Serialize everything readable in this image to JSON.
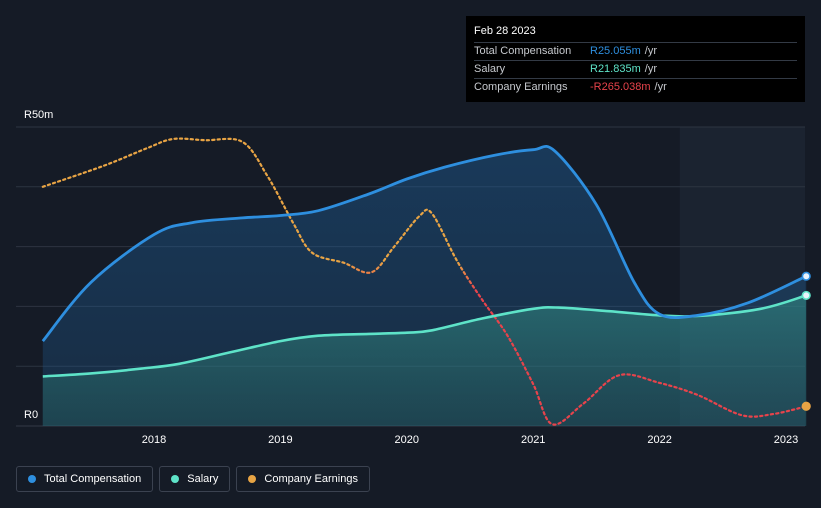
{
  "chart_data": {
    "type": "line",
    "x_ticks": [
      "2018",
      "2019",
      "2020",
      "2021",
      "2022",
      "2023"
    ],
    "y_tick_labels": {
      "max": "R50m",
      "min": "R0"
    },
    "ylim": [
      0,
      50
    ],
    "series": [
      {
        "name": "Total Compensation",
        "color": "#2e8fdf",
        "style": "solid-area",
        "points": [
          [
            2017.12,
            14.2
          ],
          [
            2017.5,
            24
          ],
          [
            2018.0,
            32
          ],
          [
            2018.3,
            34
          ],
          [
            2018.7,
            34.8
          ],
          [
            2019.0,
            35.2
          ],
          [
            2019.3,
            36
          ],
          [
            2019.7,
            38.8
          ],
          [
            2020.0,
            41.3
          ],
          [
            2020.3,
            43.3
          ],
          [
            2020.7,
            45.3
          ],
          [
            2021.0,
            46.2
          ],
          [
            2021.17,
            46.0
          ],
          [
            2021.5,
            37
          ],
          [
            2021.8,
            24
          ],
          [
            2022.0,
            18.7
          ],
          [
            2022.3,
            18.5
          ],
          [
            2022.7,
            20.6
          ],
          [
            2023.16,
            25.05
          ]
        ]
      },
      {
        "name": "Salary",
        "color": "#5ee3c8",
        "style": "solid-area",
        "points": [
          [
            2017.12,
            8.3
          ],
          [
            2017.5,
            8.8
          ],
          [
            2017.9,
            9.6
          ],
          [
            2018.2,
            10.4
          ],
          [
            2018.6,
            12.3
          ],
          [
            2019.0,
            14.2
          ],
          [
            2019.3,
            15.1
          ],
          [
            2019.7,
            15.4
          ],
          [
            2020.0,
            15.6
          ],
          [
            2020.2,
            16.0
          ],
          [
            2020.6,
            18.0
          ],
          [
            2021.0,
            19.6
          ],
          [
            2021.2,
            19.8
          ],
          [
            2021.6,
            19.2
          ],
          [
            2022.0,
            18.5
          ],
          [
            2022.3,
            18.4
          ],
          [
            2022.8,
            19.6
          ],
          [
            2023.16,
            21.835
          ]
        ]
      },
      {
        "name": "Company Earnings",
        "color": "#e8a444",
        "style": "dotted",
        "points": [
          [
            2017.12,
            40.0
          ],
          [
            2017.6,
            43.5
          ],
          [
            2017.95,
            46.5
          ],
          [
            2018.15,
            48.0
          ],
          [
            2018.4,
            47.8
          ],
          [
            2018.7,
            47.5
          ],
          [
            2018.9,
            41.7
          ],
          [
            2019.1,
            34
          ],
          [
            2019.25,
            29
          ],
          [
            2019.5,
            27.3
          ],
          [
            2019.72,
            25.7
          ],
          [
            2019.9,
            30
          ],
          [
            2020.1,
            35.1
          ],
          [
            2020.2,
            35.5
          ],
          [
            2020.4,
            27.5
          ],
          [
            2020.6,
            21.0
          ],
          [
            2020.8,
            15.0
          ],
          [
            2021.0,
            7.0
          ],
          [
            2021.15,
            0.3
          ],
          [
            2021.4,
            3.8
          ],
          [
            2021.68,
            8.5
          ],
          [
            2022.0,
            7.2
          ],
          [
            2022.3,
            5.2
          ],
          [
            2022.65,
            1.8
          ],
          [
            2022.9,
            2.0
          ],
          [
            2023.16,
            3.3
          ]
        ]
      }
    ]
  },
  "tooltip": {
    "date": "Feb 28 2023",
    "rows": [
      {
        "name": "Total Compensation",
        "value": "R25.055m",
        "unit": "/yr",
        "color": "#2e8fdf"
      },
      {
        "name": "Salary",
        "value": "R21.835m",
        "unit": "/yr",
        "color": "#5ee3c8"
      },
      {
        "name": "Company Earnings",
        "value": "-R265.038m",
        "unit": "/yr",
        "color": "#e8434b"
      }
    ]
  },
  "legend": [
    {
      "label": "Total Compensation",
      "color": "#2e8fdf"
    },
    {
      "label": "Salary",
      "color": "#5ee3c8"
    },
    {
      "label": "Company Earnings",
      "color": "#e8a444"
    }
  ],
  "colors": {
    "background": "#151b26",
    "future_shade": "#1b2330",
    "gridline": "#2d3441",
    "earnings_negative": "#e8434b"
  }
}
